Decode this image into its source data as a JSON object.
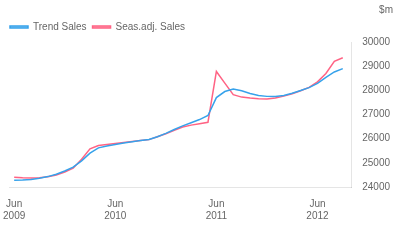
{
  "chart_data": {
    "type": "line",
    "ylabel": "$m",
    "x": [
      0,
      1,
      2,
      3,
      4,
      5,
      6,
      7,
      8,
      9,
      10,
      11,
      12,
      13,
      14,
      15,
      16,
      17,
      18,
      19,
      20,
      21,
      22,
      23,
      24,
      25,
      26,
      27,
      28,
      29,
      30,
      31,
      32,
      33,
      34,
      35,
      36,
      37,
      38,
      39
    ],
    "series": [
      {
        "name": "Trend Sales",
        "values": [
          24280,
          24290,
          24310,
          24360,
          24430,
          24530,
          24660,
          24820,
          25080,
          25400,
          25620,
          25700,
          25760,
          25820,
          25870,
          25920,
          25970,
          26080,
          26220,
          26380,
          26530,
          26660,
          26790,
          26960,
          27700,
          27950,
          28050,
          27980,
          27870,
          27790,
          27750,
          27740,
          27790,
          27880,
          27990,
          28110,
          28290,
          28540,
          28760,
          28900
        ]
      },
      {
        "name": "Seas.adj. Sales",
        "values": [
          24400,
          24380,
          24370,
          24380,
          24420,
          24500,
          24620,
          24780,
          25150,
          25580,
          25720,
          25760,
          25800,
          25840,
          25880,
          25920,
          25960,
          26080,
          26200,
          26350,
          26480,
          26560,
          26620,
          26680,
          28780,
          28300,
          27820,
          27720,
          27680,
          27650,
          27640,
          27680,
          27760,
          27860,
          27980,
          28120,
          28350,
          28700,
          29200,
          29350
        ]
      }
    ],
    "xlim": [
      -0.5,
      40.0
    ],
    "xticks": [
      {
        "value": 0,
        "label": "Jun\n2009"
      },
      {
        "value": 12,
        "label": "Jun\n2010"
      },
      {
        "value": 24,
        "label": "Jun\n2011"
      },
      {
        "value": 36,
        "label": "Jun\n2012"
      }
    ],
    "ylim": [
      24000,
      30000
    ],
    "yticks": [
      24000,
      25000,
      26000,
      27000,
      28000,
      29000,
      30000
    ],
    "grid": false,
    "legend": "upper left"
  }
}
